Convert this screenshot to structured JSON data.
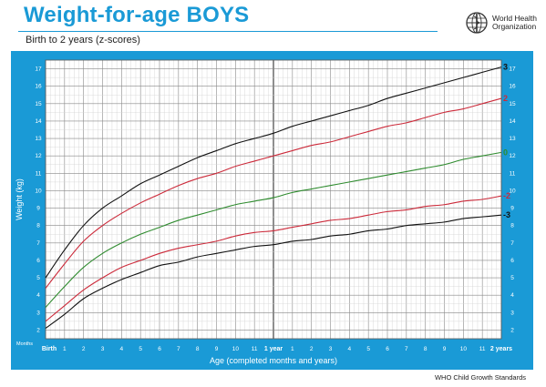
{
  "header": {
    "title": "Weight-for-age BOYS",
    "subtitle": "Birth to 2 years (z-scores)",
    "org_line1": "World Health",
    "org_line2": "Organization"
  },
  "footer": {
    "source": "WHO Child Growth Standards"
  },
  "colors": {
    "frame": "#1a9ad6",
    "grid": "#bbbbbb",
    "sd3": "#111111",
    "sd2": "#cc2a3a",
    "sd0": "#2e8b2e"
  },
  "chart_data": {
    "type": "line",
    "title": "Weight-for-age BOYS",
    "subtitle": "Birth to 2 years (z-scores)",
    "xlabel": "Age (completed months and years)",
    "ylabel": "Weight (kg)",
    "x_unit_label": "Months",
    "xlim": [
      0,
      24
    ],
    "ylim": [
      1.5,
      17.5
    ],
    "grid": true,
    "x_ticks": [
      {
        "x": 0,
        "label": "Birth"
      },
      {
        "x": 1,
        "label": "1"
      },
      {
        "x": 2,
        "label": "2"
      },
      {
        "x": 3,
        "label": "3"
      },
      {
        "x": 4,
        "label": "4"
      },
      {
        "x": 5,
        "label": "5"
      },
      {
        "x": 6,
        "label": "6"
      },
      {
        "x": 7,
        "label": "7"
      },
      {
        "x": 8,
        "label": "8"
      },
      {
        "x": 9,
        "label": "9"
      },
      {
        "x": 10,
        "label": "10"
      },
      {
        "x": 11,
        "label": "11"
      },
      {
        "x": 12,
        "label": "1 year"
      },
      {
        "x": 13,
        "label": "1"
      },
      {
        "x": 14,
        "label": "2"
      },
      {
        "x": 15,
        "label": "3"
      },
      {
        "x": 16,
        "label": "4"
      },
      {
        "x": 17,
        "label": "5"
      },
      {
        "x": 18,
        "label": "6"
      },
      {
        "x": 19,
        "label": "7"
      },
      {
        "x": 20,
        "label": "8"
      },
      {
        "x": 21,
        "label": "9"
      },
      {
        "x": 22,
        "label": "10"
      },
      {
        "x": 23,
        "label": "11"
      },
      {
        "x": 24,
        "label": "2 years"
      }
    ],
    "y_ticks": [
      2,
      3,
      4,
      5,
      6,
      7,
      8,
      9,
      10,
      11,
      12,
      13,
      14,
      15,
      16,
      17
    ],
    "x": [
      0,
      1,
      2,
      3,
      4,
      5,
      6,
      7,
      8,
      9,
      10,
      11,
      12,
      13,
      14,
      15,
      16,
      17,
      18,
      19,
      20,
      21,
      22,
      23,
      24
    ],
    "series": [
      {
        "name": "3",
        "color": "#111111",
        "values": [
          5.0,
          6.6,
          8.0,
          9.0,
          9.7,
          10.4,
          10.9,
          11.4,
          11.9,
          12.3,
          12.7,
          13.0,
          13.3,
          13.7,
          14.0,
          14.3,
          14.6,
          14.9,
          15.3,
          15.6,
          15.9,
          16.2,
          16.5,
          16.8,
          17.1
        ]
      },
      {
        "name": "2",
        "color": "#cc2a3a",
        "values": [
          4.4,
          5.8,
          7.1,
          8.0,
          8.7,
          9.3,
          9.8,
          10.3,
          10.7,
          11.0,
          11.4,
          11.7,
          12.0,
          12.3,
          12.6,
          12.8,
          13.1,
          13.4,
          13.7,
          13.9,
          14.2,
          14.5,
          14.7,
          15.0,
          15.3
        ]
      },
      {
        "name": "0",
        "color": "#2e8b2e",
        "values": [
          3.3,
          4.5,
          5.6,
          6.4,
          7.0,
          7.5,
          7.9,
          8.3,
          8.6,
          8.9,
          9.2,
          9.4,
          9.6,
          9.9,
          10.1,
          10.3,
          10.5,
          10.7,
          10.9,
          11.1,
          11.3,
          11.5,
          11.8,
          12.0,
          12.2
        ]
      },
      {
        "name": "-2",
        "color": "#cc2a3a",
        "values": [
          2.5,
          3.4,
          4.3,
          5.0,
          5.6,
          6.0,
          6.4,
          6.7,
          6.9,
          7.1,
          7.4,
          7.6,
          7.7,
          7.9,
          8.1,
          8.3,
          8.4,
          8.6,
          8.8,
          8.9,
          9.1,
          9.2,
          9.4,
          9.5,
          9.7
        ]
      },
      {
        "name": "-3",
        "color": "#111111",
        "values": [
          2.1,
          2.9,
          3.8,
          4.4,
          4.9,
          5.3,
          5.7,
          5.9,
          6.2,
          6.4,
          6.6,
          6.8,
          6.9,
          7.1,
          7.2,
          7.4,
          7.5,
          7.7,
          7.8,
          8.0,
          8.1,
          8.2,
          8.4,
          8.5,
          8.6
        ]
      }
    ]
  }
}
